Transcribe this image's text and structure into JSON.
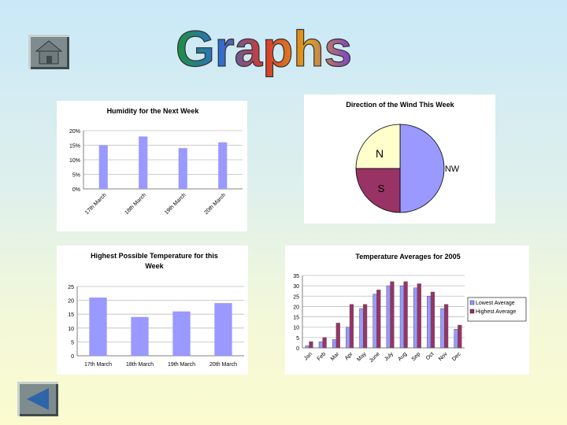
{
  "page": {
    "title": "Graphs"
  },
  "colors": {
    "bar_blue": "#9999ff",
    "bar_maroon": "#993366",
    "pie_yellow": "#ffffcc",
    "title_gradient": [
      "#1f8f3a",
      "#2b6fd6",
      "#d8382c",
      "#e0a21a",
      "#7a3fd0"
    ]
  },
  "nav": {
    "home_icon": "house-icon",
    "back_icon": "left-triangle-icon"
  },
  "chart_data": [
    {
      "type": "bar",
      "title": "Humidity for the Next Week",
      "categories": [
        "17th March",
        "18th March",
        "19th March",
        "20th March"
      ],
      "values": [
        15,
        18,
        14,
        16
      ],
      "ylim": [
        0,
        20
      ],
      "yticks": [
        "0%",
        "5%",
        "10%",
        "15%",
        "20%"
      ],
      "grid": true,
      "legend": "none"
    },
    {
      "type": "pie",
      "title": "Direction of the Wind This Week",
      "labels": [
        "NW",
        "S",
        "N"
      ],
      "values": [
        50,
        25,
        25
      ],
      "colors": [
        "#9999ff",
        "#993366",
        "#ffffcc"
      ]
    },
    {
      "type": "bar",
      "title": "Highest Possible Temperature for this Week",
      "title_lines": [
        "Highest Possible Temperature for this",
        "Week"
      ],
      "categories": [
        "17th March",
        "18th March",
        "19th March",
        "20th March"
      ],
      "values": [
        21,
        14,
        16,
        19
      ],
      "ylim": [
        0,
        25
      ],
      "yticks": [
        "0",
        "5",
        "10",
        "15",
        "20",
        "25"
      ],
      "grid": true,
      "legend": "none"
    },
    {
      "type": "bar",
      "title": "Temperature Averages for 2005",
      "categories": [
        "Jan",
        "Feb",
        "Mar",
        "Apr",
        "May",
        "June",
        "July",
        "Aug",
        "Sep",
        "Oct",
        "Nov",
        "Dec"
      ],
      "series": [
        {
          "name": "Lowest Average",
          "values": [
            1,
            3,
            4,
            10,
            19,
            26,
            30,
            30,
            29,
            25,
            19,
            9
          ]
        },
        {
          "name": "Highest Average",
          "values": [
            3,
            5,
            12,
            21,
            21,
            28,
            32,
            32,
            31,
            27,
            21,
            11
          ]
        }
      ],
      "ylim": [
        0,
        35
      ],
      "yticks": [
        "0",
        "5",
        "10",
        "15",
        "20",
        "25",
        "30",
        "35"
      ],
      "grid": true,
      "legend": "right"
    }
  ]
}
